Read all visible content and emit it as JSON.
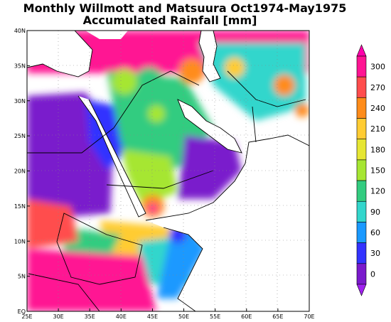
{
  "title_line1": "Monthly Willmott and Matsuura Oct1974-May1975",
  "title_line2": "Accumulated Rainfall [mm]",
  "map": {
    "lon_ticks": [
      "25E",
      "30E",
      "35E",
      "40E",
      "45E",
      "50E",
      "55E",
      "60E",
      "65E",
      "70E"
    ],
    "lat_ticks": [
      "40N",
      "35N",
      "30N",
      "25N",
      "20N",
      "15N",
      "10N",
      "5N",
      "EQ"
    ],
    "lon_range": [
      25,
      70
    ],
    "lat_range": [
      0,
      40
    ],
    "gridlines": "dotted"
  },
  "colorbar": {
    "levels": [
      "300",
      "270",
      "240",
      "210",
      "180",
      "150",
      "120",
      "90",
      "60",
      "30",
      "0"
    ],
    "colors": [
      "#ff1493",
      "#ff4d4d",
      "#ff8c1a",
      "#ffcc33",
      "#e6e633",
      "#a6e633",
      "#33cc80",
      "#33d6cc",
      "#1a99ff",
      "#3333ff",
      "#7a1acc"
    ],
    "over_color": "#ff00aa",
    "under_color": "#a020f0"
  }
}
